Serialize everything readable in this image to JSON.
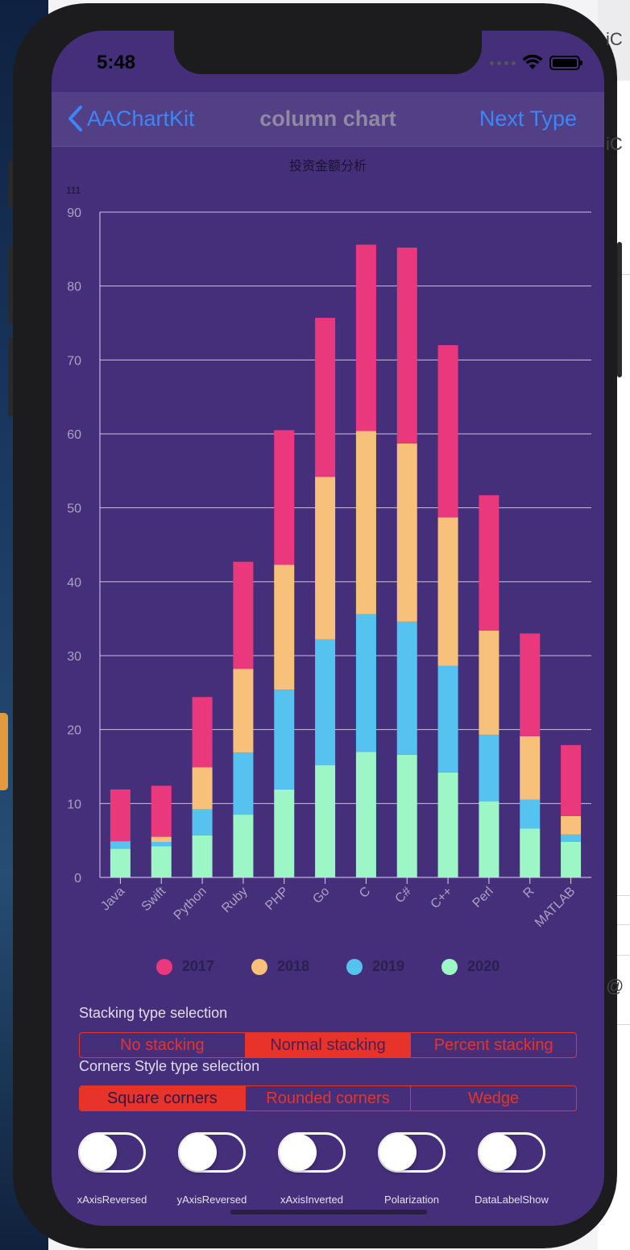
{
  "status_bar": {
    "time": "5:48"
  },
  "nav": {
    "back_label": "AAChartKit",
    "title": "column chart",
    "next_label": "Next Type"
  },
  "chart_data": {
    "type": "bar",
    "stacking": "normal",
    "title": "投资金额分析",
    "subtitle": "111",
    "categories": [
      "Java",
      "Swift",
      "Python",
      "Ruby",
      "PHP",
      "Go",
      "C",
      "C#",
      "C++",
      "Perl",
      "R",
      "MATLAB"
    ],
    "series": [
      {
        "name": "2020",
        "color": "#9df6c6",
        "values": [
          3.9,
          4.2,
          5.7,
          8.5,
          11.9,
          15.2,
          17.0,
          16.6,
          14.2,
          10.3,
          6.6,
          4.8
        ]
      },
      {
        "name": "2019",
        "color": "#56c2ef",
        "values": [
          1.0,
          0.6,
          3.5,
          8.4,
          13.5,
          17.0,
          18.6,
          18.0,
          14.4,
          9.0,
          3.9,
          1.0
        ]
      },
      {
        "name": "2018",
        "color": "#f7c17b",
        "values": [
          0.0,
          0.7,
          5.7,
          11.3,
          16.9,
          22.0,
          24.8,
          24.1,
          20.1,
          14.1,
          8.6,
          2.5
        ]
      },
      {
        "name": "2017",
        "color": "#e9387c",
        "values": [
          7.0,
          6.9,
          9.5,
          14.5,
          18.2,
          21.5,
          25.2,
          26.5,
          23.3,
          18.3,
          13.9,
          9.6
        ]
      }
    ],
    "ylim": [
      0,
      90
    ],
    "yticks": [
      0,
      10,
      20,
      30,
      40,
      50,
      60,
      70,
      80,
      90
    ],
    "legend_position": "bottom",
    "grid": true
  },
  "legend": [
    {
      "label": "2017",
      "color": "#e9387c"
    },
    {
      "label": "2018",
      "color": "#f7c17b"
    },
    {
      "label": "2019",
      "color": "#56c2ef"
    },
    {
      "label": "2020",
      "color": "#9df6c6"
    }
  ],
  "stacking": {
    "title": "Stacking type selection",
    "options": [
      "No stacking",
      "Normal stacking",
      "Percent stacking"
    ],
    "selected": "Normal stacking"
  },
  "corners": {
    "title": "Corners Style type selection",
    "options": [
      "Square corners",
      "Rounded corners",
      "Wedge"
    ],
    "selected": "Square corners"
  },
  "toggles": [
    {
      "label": "xAxisReversed",
      "on": false
    },
    {
      "label": "yAxisReversed",
      "on": false
    },
    {
      "label": "xAxisInverted",
      "on": false
    },
    {
      "label": "Polarization",
      "on": false
    },
    {
      "label": "DataLabelShow",
      "on": false
    }
  ]
}
